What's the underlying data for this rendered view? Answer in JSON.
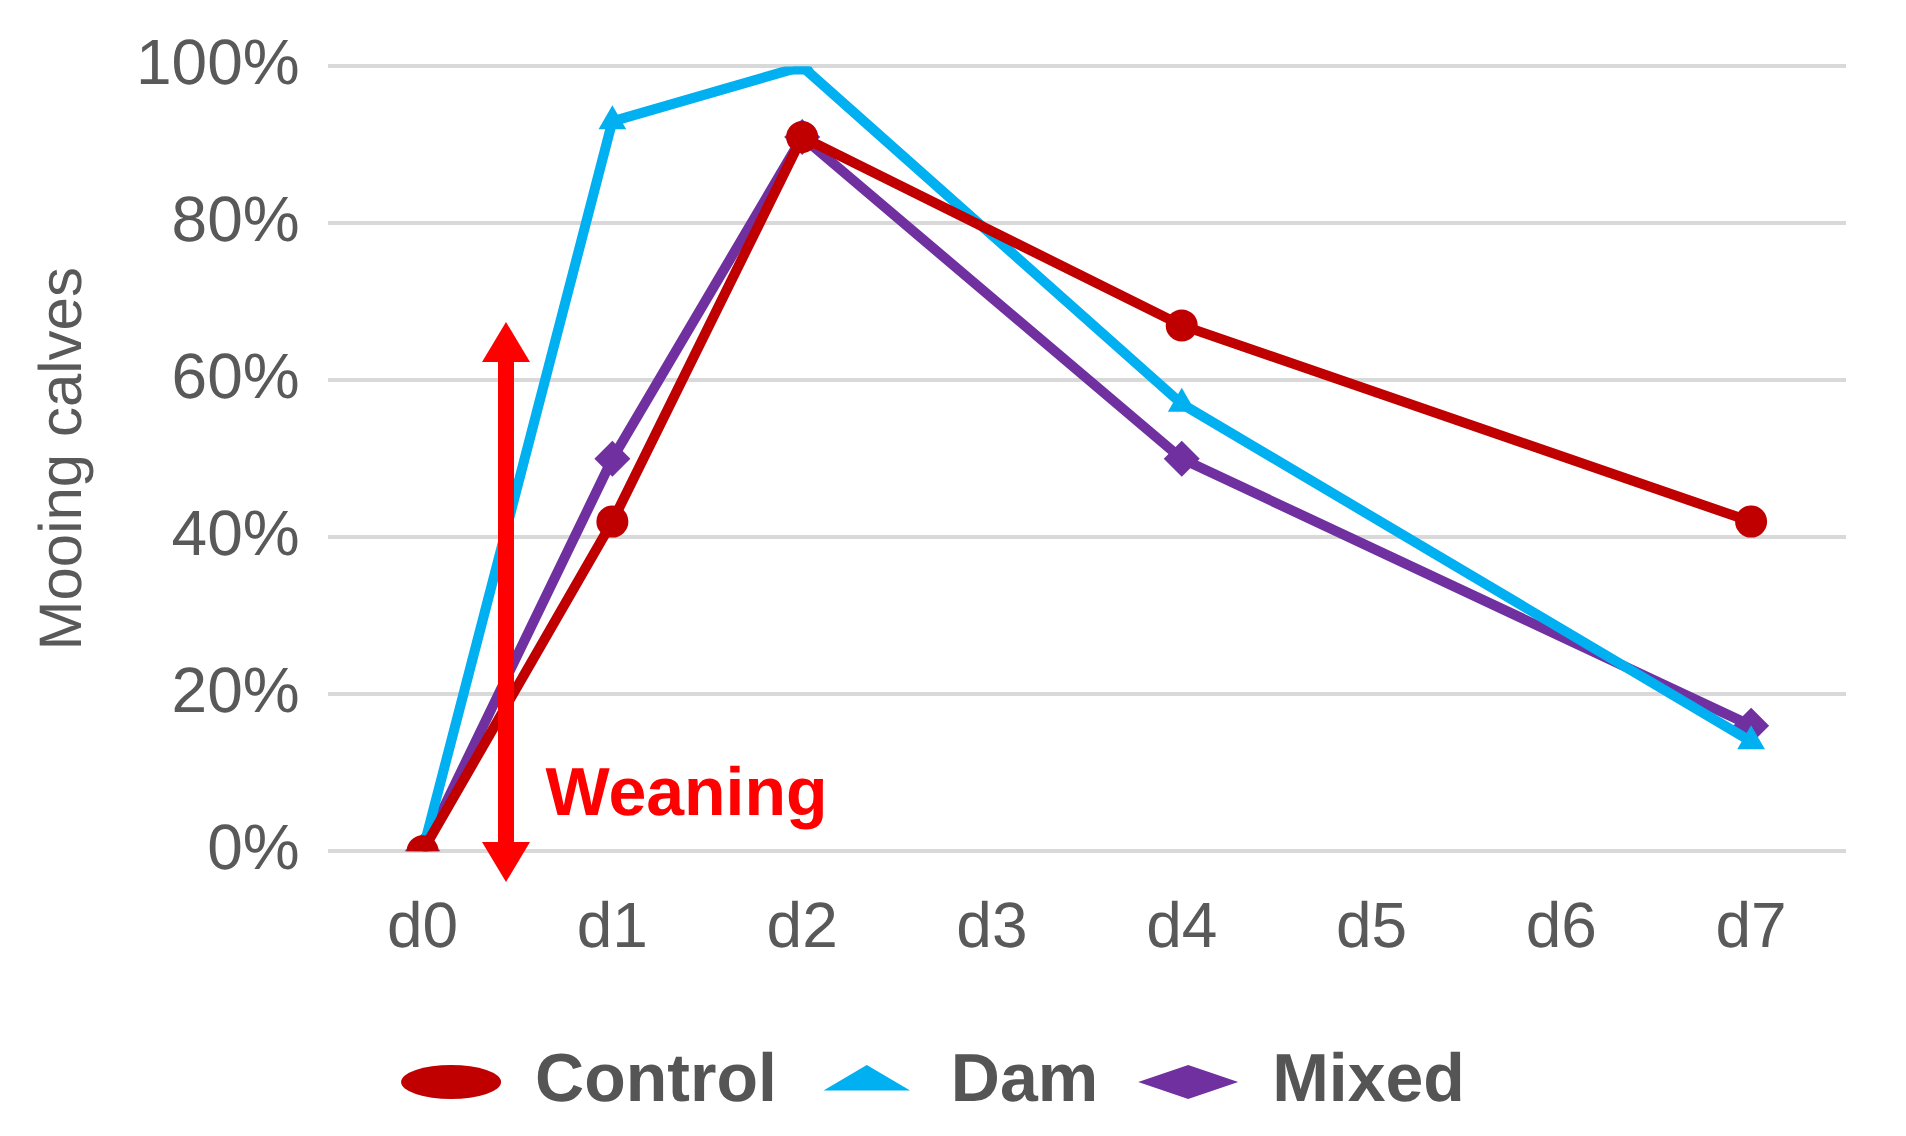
{
  "chart_data": {
    "type": "line",
    "ylabel": "Mooing calves",
    "categories": [
      "d0",
      "d1",
      "d2",
      "d3",
      "d4",
      "d5",
      "d6",
      "d7"
    ],
    "series": [
      {
        "name": "Control",
        "color": "#c00000",
        "marker": "circle",
        "values": [
          0,
          42,
          91,
          null,
          67,
          null,
          null,
          42
        ]
      },
      {
        "name": "Dam",
        "color": "#00b0f0",
        "marker": "triangle",
        "values": [
          0,
          93,
          100,
          null,
          57,
          null,
          null,
          14
        ]
      },
      {
        "name": "Mixed",
        "color": "#7030a0",
        "marker": "diamond",
        "values": [
          0,
          50,
          91,
          null,
          50,
          null,
          null,
          16
        ]
      }
    ],
    "ylim": [
      0,
      100
    ],
    "yticks": [
      {
        "value": 0,
        "label": "0%"
      },
      {
        "value": 20,
        "label": "20%"
      },
      {
        "value": 40,
        "label": "40%"
      },
      {
        "value": 60,
        "label": "60%"
      },
      {
        "value": 80,
        "label": "80%"
      },
      {
        "value": 100,
        "label": "100%"
      }
    ],
    "grid": "y",
    "legend": "bottom",
    "annotations": [
      "Weaning"
    ]
  }
}
